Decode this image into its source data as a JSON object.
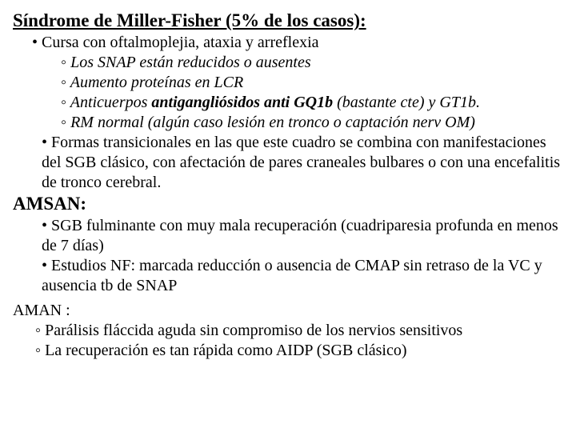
{
  "miller": {
    "title": "Síndrome de Miller-Fisher (5% de los casos):",
    "b1": "• Cursa con oftalmoplejia, ataxia y arreflexia",
    "s1": "◦ Los SNAP están reducidos o ausentes",
    "s2": "◦ Aumento proteínas en LCR",
    "s3a": "◦ Anticuerpos ",
    "s3b": "antigangliósidos anti GQ1b",
    "s3c": " (bastante cte) y GT1b.",
    "s4": "◦ RM normal (algún caso lesión en tronco o captación nerv OM)",
    "b2": "• Formas transicionales en las que este cuadro se combina con manifestaciones del SGB clásico, con afectación de pares craneales bulbares o con una encefalitis de tronco cerebral."
  },
  "amsan": {
    "title": "AMSAN:",
    "b1": "• SGB fulminante con muy mala recuperación (cuadriparesia profunda en menos de 7 días)",
    "b2": "• Estudios NF: marcada reducción o ausencia de CMAP sin retraso de la VC y ausencia tb de SNAP"
  },
  "aman": {
    "title": "AMAN :",
    "s1": "◦ Parálisis fláccida aguda sin compromiso de los nervios sensitivos",
    "s2": "◦ La recuperación es tan rápida como AIDP (SGB clásico)"
  }
}
